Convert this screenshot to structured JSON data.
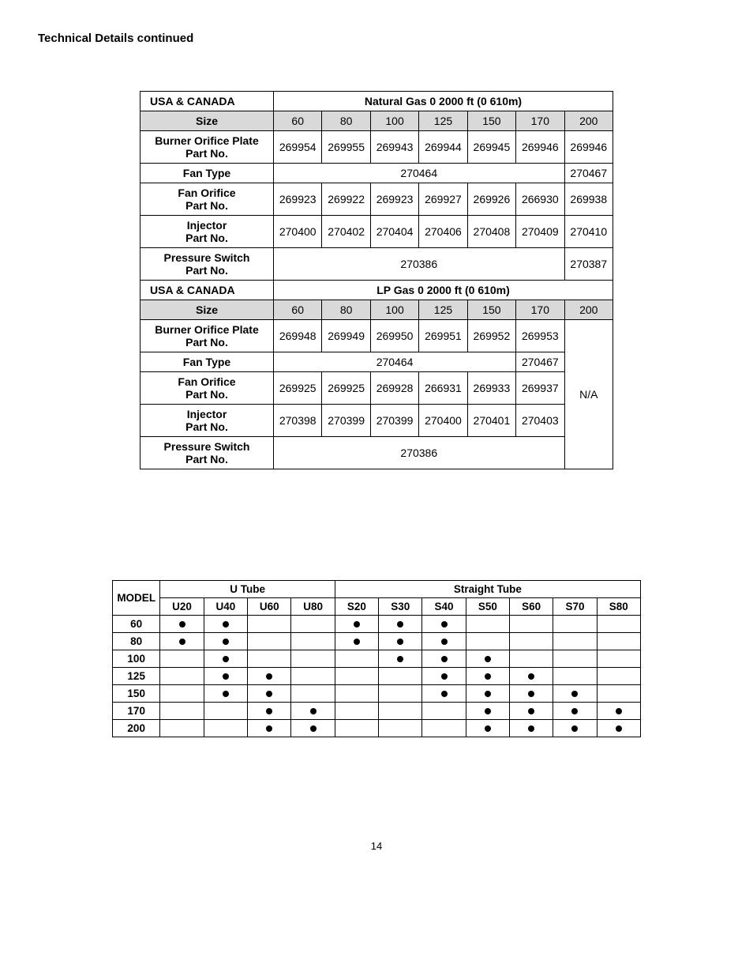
{
  "heading": "Technical Details continued",
  "page_number": "14",
  "table1": {
    "ng": {
      "region": "USA & CANADA",
      "gas_label": "Natural Gas 0  2000 ft (0 610m)",
      "size_label": "Size",
      "sizes": [
        "60",
        "80",
        "100",
        "125",
        "150",
        "170",
        "200"
      ],
      "rows": [
        {
          "label": "Burner Orifice Plate Part No.",
          "type": "cells",
          "cells": [
            "269954",
            "269955",
            "269943",
            "269944",
            "269945",
            "269946",
            "269946"
          ]
        },
        {
          "label": "Fan Type",
          "type": "span6+1",
          "span6": "270464",
          "last": "270467"
        },
        {
          "label": "Fan Orifice Part No.",
          "type": "cells",
          "cells": [
            "269923",
            "269922",
            "269923",
            "269927",
            "269926",
            "266930",
            "269938"
          ]
        },
        {
          "label": "Injector Part No.",
          "type": "cells",
          "cells": [
            "270400",
            "270402",
            "270404",
            "270406",
            "270408",
            "270409",
            "270410"
          ]
        },
        {
          "label": "Pressure Switch Part No.",
          "type": "span6+1",
          "span6": "270386",
          "last": "270387"
        }
      ]
    },
    "lp": {
      "region": "USA & CANADA",
      "gas_label": "LP Gas 0  2000 ft (0 610m)",
      "size_label": "Size",
      "sizes": [
        "60",
        "80",
        "100",
        "125",
        "150",
        "170",
        "200"
      ],
      "na_label": "N/A",
      "rows": [
        {
          "label": "Burner Orifice Plate Part No.",
          "cells": [
            "269948",
            "269949",
            "269950",
            "269951",
            "269952",
            "269953"
          ]
        },
        {
          "label": "Fan Type",
          "type": "span5+1",
          "span5": "270464",
          "last": "270467"
        },
        {
          "label": "Fan Orifice Part No.",
          "cells": [
            "269925",
            "269925",
            "269928",
            "266931",
            "269933",
            "269937"
          ]
        },
        {
          "label": "Injector Part No.",
          "cells": [
            "270398",
            "270399",
            "270399",
            "270400",
            "270401",
            "270403"
          ]
        },
        {
          "label": "Pressure Switch Part No.",
          "type": "span6",
          "span6": "270386"
        }
      ]
    }
  },
  "table2": {
    "model_label": "MODEL",
    "groups": [
      {
        "label": "U Tube",
        "cols": [
          "U20",
          "U40",
          "U60",
          "U80"
        ]
      },
      {
        "label": "Straight Tube",
        "cols": [
          "S20",
          "S30",
          "S40",
          "S50",
          "S60",
          "S70",
          "S80"
        ]
      }
    ],
    "rows": [
      {
        "model": "60",
        "dots": [
          1,
          1,
          0,
          0,
          1,
          1,
          1,
          0,
          0,
          0,
          0
        ]
      },
      {
        "model": "80",
        "dots": [
          1,
          1,
          0,
          0,
          1,
          1,
          1,
          0,
          0,
          0,
          0
        ]
      },
      {
        "model": "100",
        "dots": [
          0,
          1,
          0,
          0,
          0,
          1,
          1,
          1,
          0,
          0,
          0
        ]
      },
      {
        "model": "125",
        "dots": [
          0,
          1,
          1,
          0,
          0,
          0,
          1,
          1,
          1,
          0,
          0
        ]
      },
      {
        "model": "150",
        "dots": [
          0,
          1,
          1,
          0,
          0,
          0,
          1,
          1,
          1,
          1,
          0
        ]
      },
      {
        "model": "170",
        "dots": [
          0,
          0,
          1,
          1,
          0,
          0,
          0,
          1,
          1,
          1,
          1
        ]
      },
      {
        "model": "200",
        "dots": [
          0,
          0,
          1,
          1,
          0,
          0,
          0,
          1,
          1,
          1,
          1
        ]
      }
    ]
  }
}
